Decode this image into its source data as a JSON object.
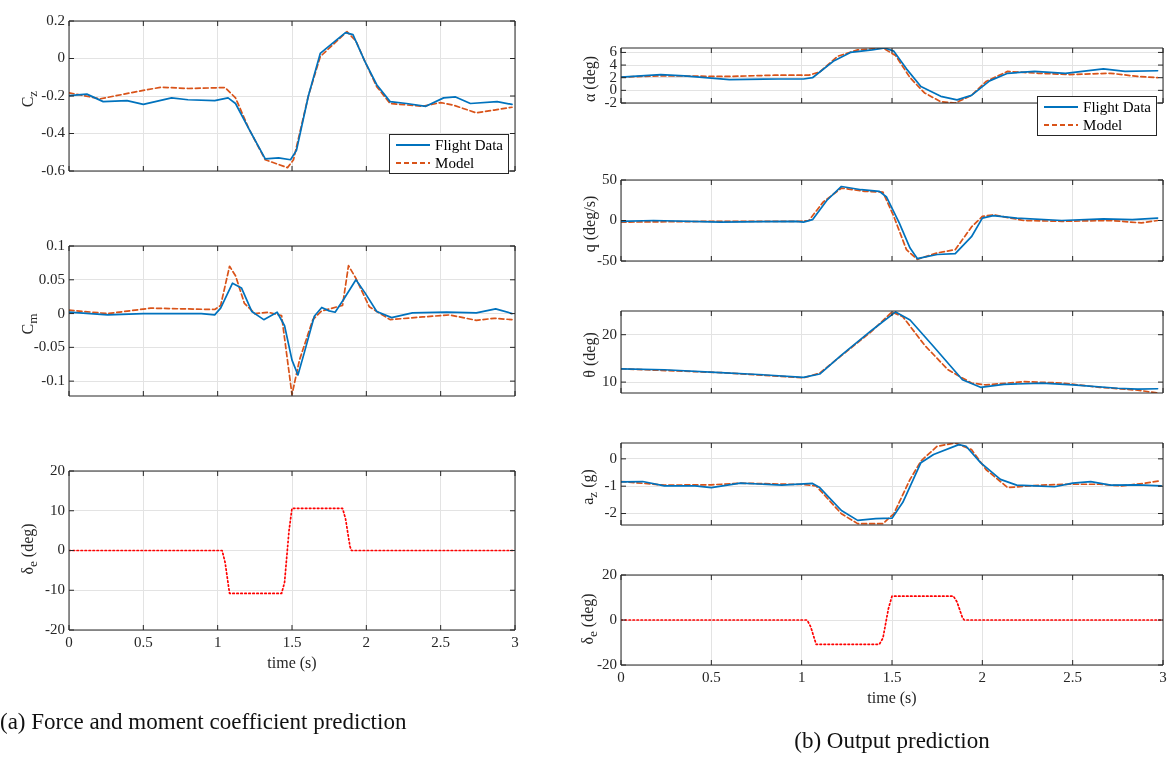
{
  "chart_data": [
    {
      "type": "line",
      "ylabel": "C$_{z}$",
      "xlim": [
        0,
        3
      ],
      "xticks": [
        0,
        0.5,
        1,
        1.5,
        2,
        2.5,
        3
      ],
      "ylim": [
        -0.6,
        0.2
      ],
      "yticks": [
        -0.6,
        -0.4,
        -0.2,
        0,
        0.2
      ],
      "grid": true,
      "tick_labels": "y",
      "legend": "bottom right",
      "series": [
        {
          "name": "Flight Data",
          "color": "#0072bd",
          "line_style": "solid",
          "x": [
            0,
            0.12,
            0.23,
            0.39,
            0.5,
            0.69,
            0.8,
            0.98,
            1.07,
            1.12,
            1.21,
            1.32,
            1.41,
            1.49,
            1.53,
            1.61,
            1.69,
            1.79,
            1.86,
            1.91,
            1.99,
            2.07,
            2.16,
            2.27,
            2.4,
            2.52,
            2.6,
            2.7,
            2.88,
            2.98
          ],
          "values": [
            -0.198,
            -0.19,
            -0.23,
            -0.225,
            -0.245,
            -0.21,
            -0.22,
            -0.225,
            -0.21,
            -0.24,
            -0.375,
            -0.535,
            -0.53,
            -0.54,
            -0.49,
            -0.2,
            0.027,
            0.093,
            0.138,
            0.127,
            -0.015,
            -0.14,
            -0.23,
            -0.24,
            -0.255,
            -0.21,
            -0.205,
            -0.24,
            -0.23,
            -0.245
          ]
        },
        {
          "name": "Model",
          "color": "#d95319",
          "line_style": "dashed",
          "x": [
            0,
            0.21,
            0.5,
            0.62,
            0.8,
            1.05,
            1.12,
            1.21,
            1.32,
            1.47,
            1.51,
            1.61,
            1.69,
            1.79,
            1.87,
            1.93,
            1.99,
            2.07,
            2.16,
            2.38,
            2.5,
            2.59,
            2.74,
            2.86,
            2.98
          ],
          "values": [
            -0.183,
            -0.215,
            -0.17,
            -0.153,
            -0.16,
            -0.155,
            -0.21,
            -0.375,
            -0.54,
            -0.582,
            -0.54,
            -0.2,
            0.01,
            0.085,
            0.143,
            0.093,
            -0.015,
            -0.15,
            -0.24,
            -0.255,
            -0.235,
            -0.25,
            -0.29,
            -0.275,
            -0.26
          ]
        }
      ]
    },
    {
      "type": "line",
      "ylabel": "C$_{m}$",
      "xlim": [
        0,
        3
      ],
      "xticks": [
        0,
        0.5,
        1,
        1.5,
        2,
        2.5,
        3
      ],
      "ylim": [
        -0.122,
        0.1
      ],
      "yticks": [
        -0.1,
        -0.05,
        0,
        0.05,
        0.1
      ],
      "grid": true,
      "tick_labels": "y",
      "series": [
        {
          "color": "#0072bd",
          "line_style": "solid",
          "x": [
            0,
            0.26,
            0.5,
            0.89,
            0.98,
            1.02,
            1.1,
            1.16,
            1.23,
            1.31,
            1.4,
            1.45,
            1.5,
            1.54,
            1.58,
            1.65,
            1.7,
            1.75,
            1.79,
            1.85,
            1.93,
            1.99,
            2.07,
            2.17,
            2.31,
            2.54,
            2.74,
            2.87,
            2.98
          ],
          "values": [
            0.002,
            -0.002,
            0,
            0,
            -0.002,
            0.008,
            0.045,
            0.038,
            0.003,
            -0.009,
            0.002,
            -0.018,
            -0.069,
            -0.091,
            -0.06,
            -0.004,
            0.009,
            0.004,
            0.002,
            0.022,
            0.05,
            0.031,
            0.003,
            -0.006,
            0.001,
            0.002,
            0.001,
            0.007,
            0
          ]
        },
        {
          "color": "#d95319",
          "line_style": "dashed",
          "x": [
            0,
            0.26,
            0.55,
            0.98,
            1.02,
            1.08,
            1.12,
            1.18,
            1.25,
            1.34,
            1.43,
            1.5,
            1.55,
            1.64,
            1.7,
            1.84,
            1.88,
            1.93,
            2.02,
            2.16,
            2.38,
            2.56,
            2.74,
            2.86,
            2.98
          ],
          "values": [
            0.005,
            0,
            0.008,
            0.006,
            0.012,
            0.07,
            0.056,
            0.015,
            0,
            0.002,
            -0.003,
            -0.12,
            -0.069,
            -0.009,
            0.004,
            0.012,
            0.071,
            0.052,
            0.01,
            -0.009,
            -0.005,
            -0.002,
            -0.01,
            -0.007,
            -0.009
          ]
        }
      ]
    },
    {
      "type": "line",
      "ylabel": "δ$_{e}$ (deg)",
      "xlabel": "time (s)",
      "xlim": [
        0,
        3
      ],
      "xticks": [
        0,
        0.5,
        1,
        1.5,
        2,
        2.5,
        3
      ],
      "ylim": [
        -20,
        20
      ],
      "yticks": [
        -20,
        -10,
        0,
        10,
        20
      ],
      "grid": true,
      "annotations": [
        "(a) Force and moment coefficient prediction"
      ],
      "series": [
        {
          "color": "#ff0000",
          "line_style": "dotted",
          "x": [
            0,
            1.03,
            1.05,
            1.08,
            1.43,
            1.45,
            1.48,
            1.5,
            1.84,
            1.86,
            1.89,
            1.9,
            3
          ],
          "values": [
            0,
            0,
            -3,
            -10.8,
            -10.8,
            -8,
            5,
            10.6,
            10.6,
            8,
            1,
            0,
            0
          ]
        }
      ]
    },
    {
      "type": "line",
      "ylabel": "α (deg)",
      "xlim": [
        0,
        3
      ],
      "xticks": [
        0,
        0.5,
        1,
        1.5,
        2,
        2.5,
        3
      ],
      "ylim": [
        -2,
        6.7
      ],
      "yticks": [
        -2,
        0,
        2,
        4,
        6
      ],
      "grid": true,
      "tick_labels": "y",
      "legend": "bottom right",
      "series": [
        {
          "name": "Flight Data",
          "color": "#0072bd",
          "line_style": "solid",
          "x": [
            0,
            0.22,
            0.35,
            0.6,
            0.87,
            1.01,
            1.06,
            1.18,
            1.27,
            1.39,
            1.46,
            1.51,
            1.58,
            1.66,
            1.77,
            1.86,
            1.94,
            2.04,
            2.14,
            2.29,
            2.46,
            2.67,
            2.79,
            2.97
          ],
          "values": [
            2.1,
            2.5,
            2.3,
            1.7,
            1.8,
            1.8,
            2.0,
            4.7,
            6.0,
            6.4,
            6.7,
            6.2,
            3.4,
            0.6,
            -0.95,
            -1.5,
            -0.8,
            1.5,
            2.7,
            3.0,
            2.7,
            3.4,
            3.0,
            3.1
          ]
        },
        {
          "name": "Model",
          "color": "#d95319",
          "line_style": "dashed",
          "x": [
            0,
            0.22,
            0.6,
            0.85,
            1.04,
            1.1,
            1.2,
            1.31,
            1.45,
            1.52,
            1.6,
            1.68,
            1.77,
            1.85,
            1.94,
            2.02,
            2.14,
            2.31,
            2.48,
            2.71,
            2.86,
            2.97
          ],
          "values": [
            2.1,
            2.3,
            2.2,
            2.4,
            2.4,
            2.9,
            5.4,
            6.4,
            6.7,
            5.5,
            2.0,
            -0.4,
            -1.8,
            -2.0,
            -0.8,
            1.4,
            3.0,
            2.7,
            2.5,
            2.7,
            2.2,
            2.0
          ]
        }
      ]
    },
    {
      "type": "line",
      "ylabel": "q (deg/s)",
      "xlim": [
        0,
        3
      ],
      "xticks": [
        0,
        0.5,
        1,
        1.5,
        2,
        2.5,
        3
      ],
      "ylim": [
        -50,
        50
      ],
      "yticks": [
        -50,
        0,
        50
      ],
      "grid": true,
      "tick_labels": "y",
      "series": [
        {
          "color": "#0072bd",
          "line_style": "solid",
          "x": [
            0,
            0.18,
            0.55,
            0.97,
            1.01,
            1.06,
            1.14,
            1.22,
            1.33,
            1.43,
            1.47,
            1.54,
            1.6,
            1.64,
            1.75,
            1.85,
            1.94,
            2.0,
            2.06,
            2.19,
            2.44,
            2.67,
            2.83,
            2.97
          ],
          "values": [
            -1,
            0,
            -2,
            -1,
            -2,
            1,
            25,
            42,
            38,
            36,
            29,
            -3,
            -34,
            -47,
            -42,
            -41,
            -20,
            3,
            6,
            3,
            0,
            2,
            1,
            3
          ]
        },
        {
          "color": "#d95319",
          "line_style": "dashed",
          "x": [
            0,
            0.55,
            0.99,
            1.04,
            1.12,
            1.22,
            1.35,
            1.45,
            1.51,
            1.58,
            1.64,
            1.75,
            1.85,
            1.94,
            2.0,
            2.06,
            2.23,
            2.44,
            2.71,
            2.88,
            2.97
          ],
          "values": [
            -2,
            -1,
            -1,
            0,
            23,
            40,
            36,
            35,
            5,
            -36,
            -48,
            -40,
            -36,
            -8,
            5,
            7,
            0,
            -1,
            0,
            -3,
            0
          ]
        }
      ]
    },
    {
      "type": "line",
      "ylabel": "θ (deg)",
      "xlim": [
        0,
        3
      ],
      "xticks": [
        0,
        0.5,
        1,
        1.5,
        2,
        2.5,
        3
      ],
      "ylim": [
        7.7,
        25
      ],
      "yticks": [
        10,
        20
      ],
      "grid": true,
      "tick_labels": "y",
      "series": [
        {
          "color": "#0072bd",
          "line_style": "solid",
          "x": [
            0,
            0.24,
            0.55,
            0.76,
            1.01,
            1.1,
            1.22,
            1.39,
            1.52,
            1.6,
            1.73,
            1.89,
            1.99,
            2.12,
            2.33,
            2.5,
            2.75,
            2.86,
            2.97
          ],
          "values": [
            12.8,
            12.6,
            12.0,
            11.6,
            11.0,
            11.7,
            15.7,
            21.0,
            24.8,
            23.1,
            17.5,
            10.5,
            8.9,
            9.5,
            9.8,
            9.4,
            8.7,
            8.5,
            8.6
          ]
        },
        {
          "color": "#d95319",
          "line_style": "dashed",
          "x": [
            0,
            0.55,
            1.01,
            1.1,
            1.39,
            1.5,
            1.56,
            1.68,
            1.81,
            1.94,
            2.02,
            2.23,
            2.44,
            2.65,
            2.86,
            2.97
          ],
          "values": [
            12.8,
            12.0,
            10.9,
            11.9,
            20.8,
            24.8,
            23.8,
            17.8,
            12.6,
            9.8,
            9.4,
            10.1,
            9.8,
            8.9,
            8.3,
            7.7
          ]
        }
      ]
    },
    {
      "type": "line",
      "ylabel": "a$_{z}$ (g)",
      "xlim": [
        0,
        3
      ],
      "xticks": [
        0,
        0.5,
        1,
        1.5,
        2,
        2.5,
        3
      ],
      "ylim": [
        -2.42,
        0.58
      ],
      "yticks": [
        -2,
        -1,
        0
      ],
      "grid": true,
      "tick_labels": "y",
      "series": [
        {
          "color": "#0072bd",
          "line_style": "solid",
          "x": [
            0,
            0.12,
            0.24,
            0.41,
            0.5,
            0.66,
            0.89,
            1.06,
            1.1,
            1.22,
            1.31,
            1.41,
            1.5,
            1.56,
            1.66,
            1.73,
            1.87,
            1.91,
            1.99,
            2.1,
            2.19,
            2.29,
            2.4,
            2.5,
            2.6,
            2.71,
            2.86,
            2.99
          ],
          "values": [
            -0.84,
            -0.83,
            -0.99,
            -0.99,
            -1.05,
            -0.89,
            -0.96,
            -0.9,
            -1.05,
            -1.89,
            -2.25,
            -2.19,
            -2.17,
            -1.59,
            -0.14,
            0.16,
            0.52,
            0.46,
            -0.14,
            -0.75,
            -0.96,
            -0.99,
            -1.02,
            -0.89,
            -0.83,
            -0.96,
            -0.95,
            -0.99
          ]
        },
        {
          "color": "#d95319",
          "line_style": "dashed",
          "x": [
            0,
            0.24,
            0.5,
            0.66,
            1.01,
            1.08,
            1.22,
            1.31,
            1.45,
            1.51,
            1.6,
            1.66,
            1.75,
            1.85,
            1.94,
            2.02,
            2.14,
            2.33,
            2.48,
            2.65,
            2.77,
            2.9,
            2.98
          ],
          "values": [
            -0.83,
            -0.96,
            -0.95,
            -0.89,
            -0.94,
            -0.99,
            -2.01,
            -2.37,
            -2.37,
            -2.01,
            -0.75,
            -0.08,
            0.46,
            0.58,
            0.34,
            -0.39,
            -1.05,
            -0.96,
            -0.93,
            -0.93,
            -0.99,
            -0.89,
            -0.81
          ]
        }
      ]
    },
    {
      "type": "line",
      "ylabel": "δ$_{e}$ (deg)",
      "xlabel": "time (s)",
      "xlim": [
        0,
        3
      ],
      "xticks": [
        0,
        0.5,
        1,
        1.5,
        2,
        2.5,
        3
      ],
      "ylim": [
        -20,
        20
      ],
      "yticks": [
        -20,
        0,
        20
      ],
      "grid": true,
      "annotations": [
        "(b) Output prediction"
      ],
      "series": [
        {
          "color": "#ff0000",
          "line_style": "dotted",
          "x": [
            0,
            1.03,
            1.05,
            1.08,
            1.43,
            1.45,
            1.48,
            1.5,
            1.84,
            1.86,
            1.89,
            1.9,
            3
          ],
          "values": [
            0,
            0,
            -3,
            -10.8,
            -10.8,
            -8,
            5,
            10.6,
            10.6,
            8,
            1,
            0,
            0
          ]
        }
      ]
    }
  ]
}
